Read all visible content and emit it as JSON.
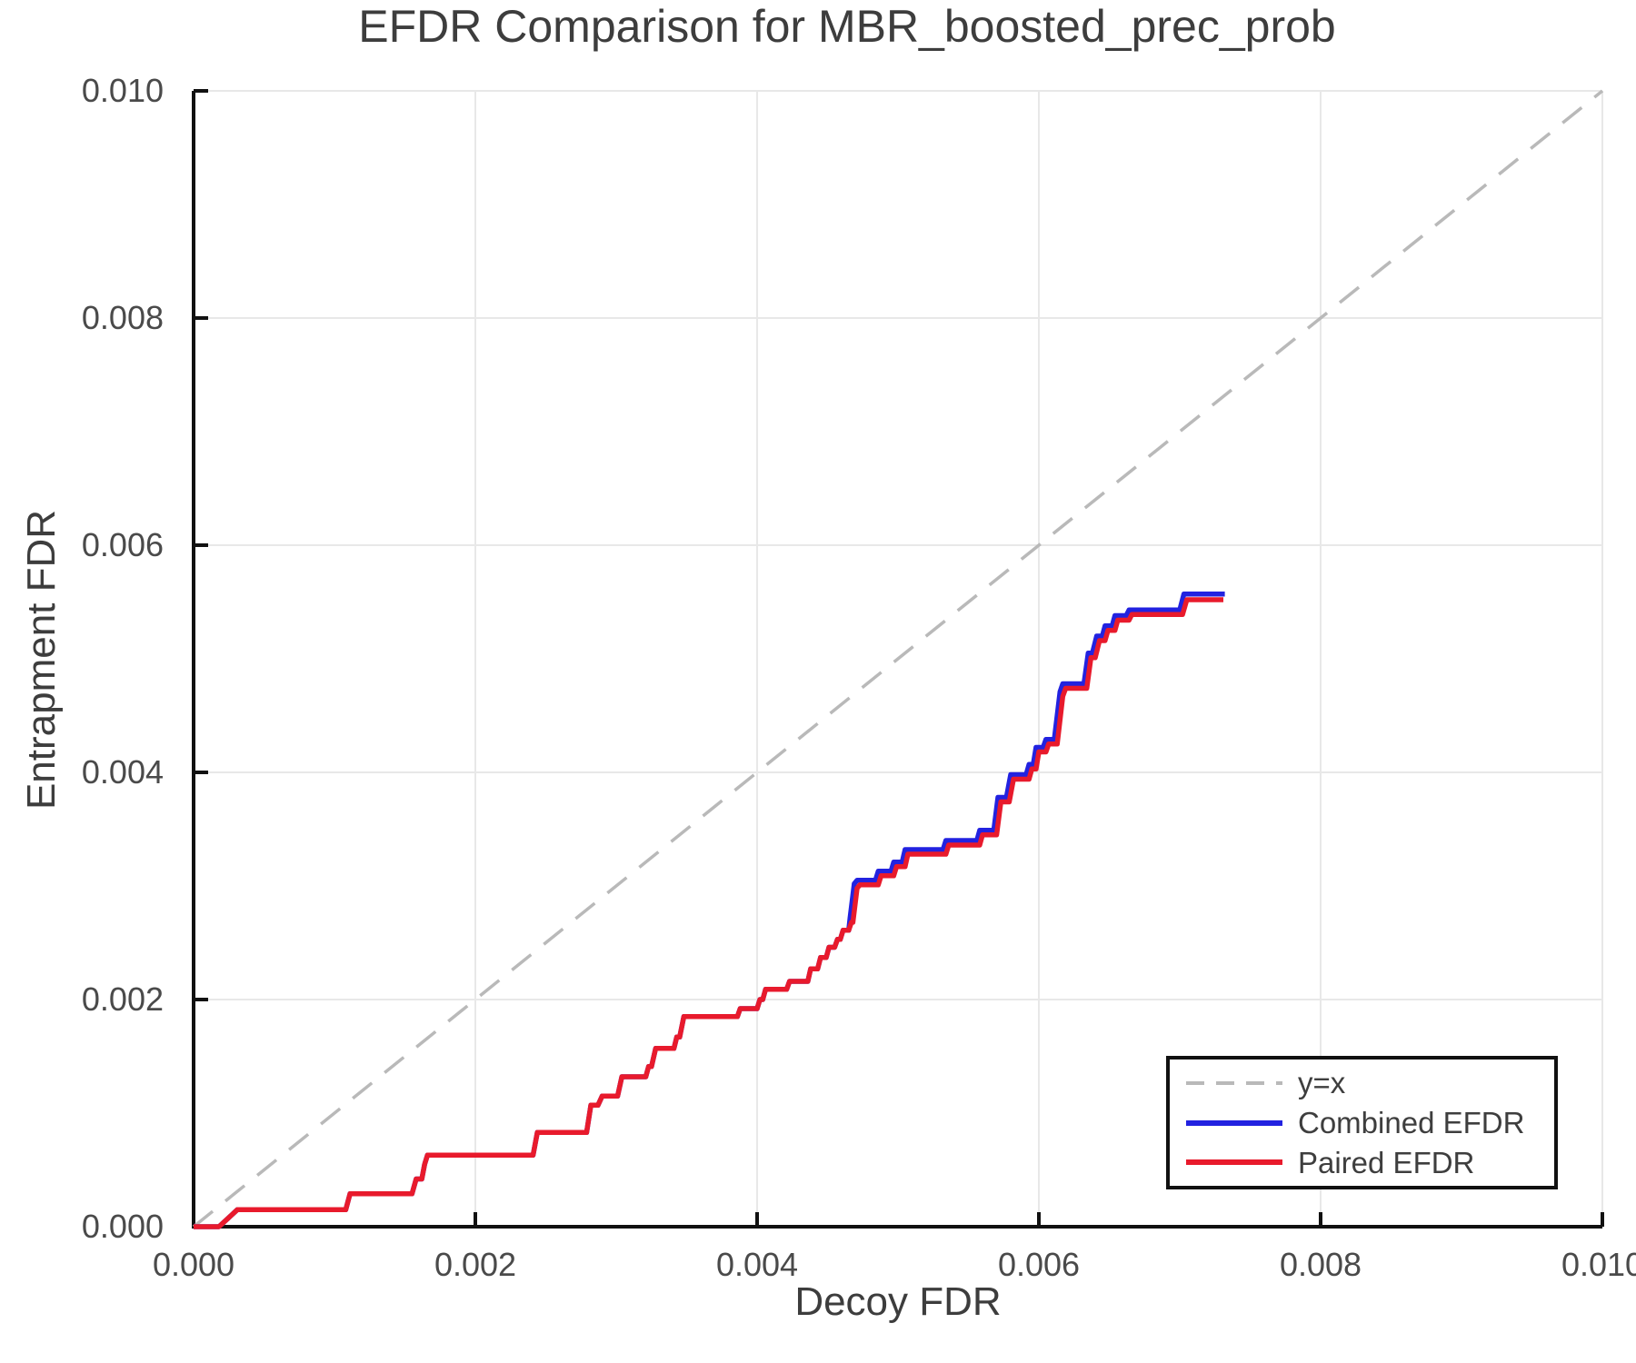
{
  "title": "EFDR Comparison for MBR_boosted_prec_prob",
  "axes": {
    "x_label": "Decoy FDR",
    "y_label": "Entrapment FDR"
  },
  "legend": {
    "items": [
      {
        "label": "y=x",
        "color": "#b9b9b9",
        "style": "dashed"
      },
      {
        "label": "Combined EFDR",
        "color": "#2222e0",
        "style": "solid"
      },
      {
        "label": "Paired EFDR",
        "color": "#e81a2c",
        "style": "solid"
      }
    ]
  },
  "colors": {
    "grid": "#e8e8e8",
    "axis": "#111111",
    "tick_label": "#4a4a4a",
    "reference_line": "#b9b9b9",
    "combined": "#2222e0",
    "paired": "#e81a2c"
  },
  "chart_data": {
    "type": "line",
    "title": "EFDR Comparison for MBR_boosted_prec_prob",
    "xlabel": "Decoy FDR",
    "ylabel": "Entrapment FDR",
    "xlim": [
      0.0,
      0.01
    ],
    "ylim": [
      0.0,
      0.01
    ],
    "grid": true,
    "legend_position": "lower right",
    "x_ticks": {
      "values": [
        0.0,
        0.002,
        0.004,
        0.006,
        0.008,
        0.01
      ],
      "labels": [
        "0.000",
        "0.002",
        "0.004",
        "0.006",
        "0.008",
        "0.010"
      ]
    },
    "y_ticks": {
      "values": [
        0.0,
        0.002,
        0.004,
        0.006,
        0.008,
        0.01
      ],
      "labels": [
        "0.000",
        "0.002",
        "0.004",
        "0.006",
        "0.008",
        "0.010"
      ]
    },
    "reference_line": {
      "name": "y=x",
      "dashed": true,
      "color": "#b9b9b9",
      "points": [
        [
          0.0,
          0.0
        ],
        [
          0.01,
          0.01
        ]
      ]
    },
    "series": [
      {
        "name": "Combined EFDR",
        "color": "#2222e0",
        "points": [
          [
            0.0,
            0.0
          ],
          [
            0.00018,
            0.0
          ],
          [
            0.00031,
            0.00015
          ],
          [
            0.00108,
            0.00015
          ],
          [
            0.00111,
            0.00029
          ],
          [
            0.00155,
            0.00029
          ],
          [
            0.00158,
            0.00042
          ],
          [
            0.00162,
            0.00042
          ],
          [
            0.00164,
            0.00055
          ],
          [
            0.00166,
            0.00063
          ],
          [
            0.00241,
            0.00063
          ],
          [
            0.00244,
            0.00083
          ],
          [
            0.00279,
            0.00083
          ],
          [
            0.00282,
            0.00107
          ],
          [
            0.00287,
            0.00107
          ],
          [
            0.0029,
            0.00115
          ],
          [
            0.00301,
            0.00115
          ],
          [
            0.00304,
            0.00132
          ],
          [
            0.00321,
            0.00132
          ],
          [
            0.00323,
            0.00141
          ],
          [
            0.00325,
            0.00141
          ],
          [
            0.00328,
            0.00157
          ],
          [
            0.00341,
            0.00157
          ],
          [
            0.00343,
            0.00167
          ],
          [
            0.00345,
            0.00167
          ],
          [
            0.00348,
            0.00185
          ],
          [
            0.00386,
            0.00185
          ],
          [
            0.00388,
            0.00192
          ],
          [
            0.004,
            0.00192
          ],
          [
            0.00402,
            0.002
          ],
          [
            0.00404,
            0.002
          ],
          [
            0.00406,
            0.00209
          ],
          [
            0.00421,
            0.00209
          ],
          [
            0.00423,
            0.00216
          ],
          [
            0.00436,
            0.00216
          ],
          [
            0.00438,
            0.00227
          ],
          [
            0.00443,
            0.00227
          ],
          [
            0.00445,
            0.00237
          ],
          [
            0.00449,
            0.00237
          ],
          [
            0.00451,
            0.00246
          ],
          [
            0.00455,
            0.00246
          ],
          [
            0.00457,
            0.00253
          ],
          [
            0.00459,
            0.00253
          ],
          [
            0.00461,
            0.00261
          ],
          [
            0.00465,
            0.00261
          ],
          [
            0.00466,
            0.00272
          ],
          [
            0.00469,
            0.00302
          ],
          [
            0.00471,
            0.00305
          ],
          [
            0.00484,
            0.00305
          ],
          [
            0.00486,
            0.00313
          ],
          [
            0.00495,
            0.00313
          ],
          [
            0.00497,
            0.00321
          ],
          [
            0.00503,
            0.00321
          ],
          [
            0.00505,
            0.00332
          ],
          [
            0.00532,
            0.00332
          ],
          [
            0.00534,
            0.0034
          ],
          [
            0.00556,
            0.0034
          ],
          [
            0.00558,
            0.00349
          ],
          [
            0.00568,
            0.00349
          ],
          [
            0.00571,
            0.00378
          ],
          [
            0.00577,
            0.00378
          ],
          [
            0.0058,
            0.00398
          ],
          [
            0.00591,
            0.00398
          ],
          [
            0.00593,
            0.00407
          ],
          [
            0.00596,
            0.00407
          ],
          [
            0.00598,
            0.00422
          ],
          [
            0.00603,
            0.00422
          ],
          [
            0.00605,
            0.00429
          ],
          [
            0.00611,
            0.00429
          ],
          [
            0.00615,
            0.00471
          ],
          [
            0.00617,
            0.00478
          ],
          [
            0.00632,
            0.00478
          ],
          [
            0.00635,
            0.00505
          ],
          [
            0.00638,
            0.00505
          ],
          [
            0.00641,
            0.0052
          ],
          [
            0.00645,
            0.0052
          ],
          [
            0.00647,
            0.00529
          ],
          [
            0.00652,
            0.00529
          ],
          [
            0.00654,
            0.00538
          ],
          [
            0.00662,
            0.00538
          ],
          [
            0.00664,
            0.00543
          ],
          [
            0.007,
            0.00543
          ],
          [
            0.00703,
            0.00557
          ],
          [
            0.00732,
            0.00557
          ]
        ]
      },
      {
        "name": "Paired EFDR",
        "color": "#e81a2c",
        "points": [
          [
            0.0,
            0.0
          ],
          [
            0.00018,
            0.0
          ],
          [
            0.00031,
            0.00015
          ],
          [
            0.00108,
            0.00015
          ],
          [
            0.00111,
            0.00029
          ],
          [
            0.00155,
            0.00029
          ],
          [
            0.00158,
            0.00042
          ],
          [
            0.00162,
            0.00042
          ],
          [
            0.00164,
            0.00055
          ],
          [
            0.00166,
            0.00063
          ],
          [
            0.00241,
            0.00063
          ],
          [
            0.00244,
            0.00083
          ],
          [
            0.00279,
            0.00083
          ],
          [
            0.00282,
            0.00107
          ],
          [
            0.00287,
            0.00107
          ],
          [
            0.0029,
            0.00115
          ],
          [
            0.00301,
            0.00115
          ],
          [
            0.00304,
            0.00132
          ],
          [
            0.00321,
            0.00132
          ],
          [
            0.00323,
            0.00141
          ],
          [
            0.00325,
            0.00141
          ],
          [
            0.00328,
            0.00157
          ],
          [
            0.00341,
            0.00157
          ],
          [
            0.00343,
            0.00167
          ],
          [
            0.00345,
            0.00167
          ],
          [
            0.00348,
            0.00185
          ],
          [
            0.00386,
            0.00185
          ],
          [
            0.00388,
            0.00192
          ],
          [
            0.004,
            0.00192
          ],
          [
            0.00402,
            0.002
          ],
          [
            0.00404,
            0.002
          ],
          [
            0.00406,
            0.00209
          ],
          [
            0.00421,
            0.00209
          ],
          [
            0.00423,
            0.00216
          ],
          [
            0.00436,
            0.00216
          ],
          [
            0.00438,
            0.00227
          ],
          [
            0.00443,
            0.00227
          ],
          [
            0.00445,
            0.00237
          ],
          [
            0.00449,
            0.00237
          ],
          [
            0.00451,
            0.00246
          ],
          [
            0.00455,
            0.00246
          ],
          [
            0.00457,
            0.00253
          ],
          [
            0.00459,
            0.00253
          ],
          [
            0.00461,
            0.00261
          ],
          [
            0.00465,
            0.00261
          ],
          [
            0.00467,
            0.00268
          ],
          [
            0.00468,
            0.00268
          ],
          [
            0.00471,
            0.00298
          ],
          [
            0.00473,
            0.00301
          ],
          [
            0.00486,
            0.00301
          ],
          [
            0.00488,
            0.00309
          ],
          [
            0.00497,
            0.00309
          ],
          [
            0.00499,
            0.00317
          ],
          [
            0.00505,
            0.00317
          ],
          [
            0.00507,
            0.00328
          ],
          [
            0.00534,
            0.00328
          ],
          [
            0.00536,
            0.00336
          ],
          [
            0.00558,
            0.00336
          ],
          [
            0.0056,
            0.00345
          ],
          [
            0.0057,
            0.00345
          ],
          [
            0.00573,
            0.00374
          ],
          [
            0.00579,
            0.00374
          ],
          [
            0.00582,
            0.00394
          ],
          [
            0.00593,
            0.00394
          ],
          [
            0.00595,
            0.00403
          ],
          [
            0.00598,
            0.00403
          ],
          [
            0.006,
            0.00418
          ],
          [
            0.00605,
            0.00418
          ],
          [
            0.00607,
            0.00425
          ],
          [
            0.00613,
            0.00425
          ],
          [
            0.00617,
            0.00467
          ],
          [
            0.00619,
            0.00474
          ],
          [
            0.00634,
            0.00474
          ],
          [
            0.00637,
            0.00501
          ],
          [
            0.0064,
            0.00501
          ],
          [
            0.00643,
            0.00516
          ],
          [
            0.00647,
            0.00516
          ],
          [
            0.00649,
            0.00525
          ],
          [
            0.00654,
            0.00525
          ],
          [
            0.00656,
            0.00534
          ],
          [
            0.00664,
            0.00534
          ],
          [
            0.00666,
            0.00539
          ],
          [
            0.00702,
            0.00539
          ],
          [
            0.00705,
            0.00552
          ],
          [
            0.00731,
            0.00552
          ]
        ]
      }
    ]
  }
}
